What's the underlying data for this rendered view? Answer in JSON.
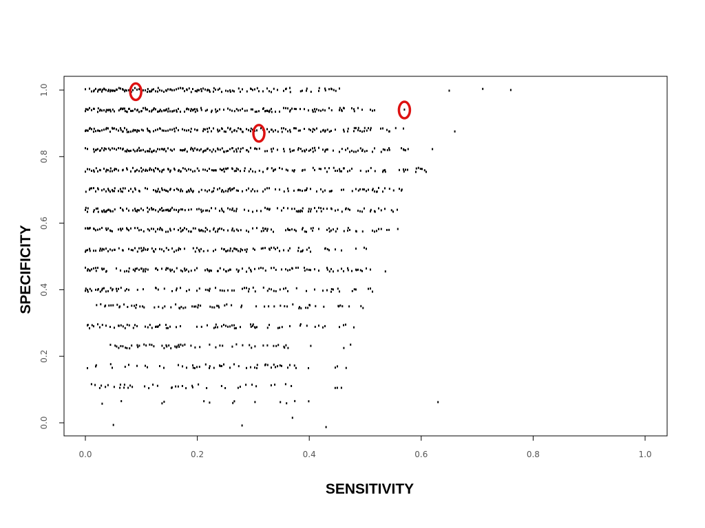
{
  "chart_data": {
    "type": "scatter",
    "title": "",
    "xlabel": "SENSITIVITY",
    "ylabel": "SPECIFICITY",
    "xlim": [
      0.0,
      1.0
    ],
    "ylim": [
      0.0,
      1.0
    ],
    "x_ticks": [
      "0.0",
      "0.2",
      "0.4",
      "0.6",
      "0.8",
      "1.0"
    ],
    "y_ticks": [
      "0.0",
      "0.2",
      "0.4",
      "0.6",
      "0.8",
      "1.0"
    ],
    "grid": false,
    "legend": "none",
    "point_color": "#000000",
    "highlight_color": "#dd1111",
    "bands": [
      {
        "y": 1.0,
        "x_min": 0.0,
        "x_max": 0.46,
        "density": 0.95,
        "outliers": [
          0.65,
          0.71,
          0.76
        ]
      },
      {
        "y": 0.94,
        "x_min": 0.0,
        "x_max": 0.52,
        "density": 0.92,
        "outliers": [
          0.57
        ]
      },
      {
        "y": 0.88,
        "x_min": 0.0,
        "x_max": 0.57,
        "density": 0.9,
        "outliers": [
          0.66
        ]
      },
      {
        "y": 0.82,
        "x_min": 0.0,
        "x_max": 0.58,
        "density": 0.88,
        "outliers": [
          0.62
        ]
      },
      {
        "y": 0.76,
        "x_min": 0.0,
        "x_max": 0.61,
        "density": 0.85,
        "outliers": []
      },
      {
        "y": 0.7,
        "x_min": 0.0,
        "x_max": 0.58,
        "density": 0.82,
        "outliers": []
      },
      {
        "y": 0.64,
        "x_min": 0.0,
        "x_max": 0.56,
        "density": 0.78,
        "outliers": []
      },
      {
        "y": 0.58,
        "x_min": 0.0,
        "x_max": 0.56,
        "density": 0.74,
        "outliers": []
      },
      {
        "y": 0.52,
        "x_min": 0.0,
        "x_max": 0.53,
        "density": 0.68,
        "outliers": []
      },
      {
        "y": 0.46,
        "x_min": 0.0,
        "x_max": 0.54,
        "density": 0.6,
        "outliers": []
      },
      {
        "y": 0.4,
        "x_min": 0.0,
        "x_max": 0.52,
        "density": 0.54,
        "outliers": []
      },
      {
        "y": 0.35,
        "x_min": 0.02,
        "x_max": 0.5,
        "density": 0.48,
        "outliers": []
      },
      {
        "y": 0.29,
        "x_min": 0.0,
        "x_max": 0.48,
        "density": 0.46,
        "outliers": []
      },
      {
        "y": 0.23,
        "x_min": 0.03,
        "x_max": 0.48,
        "density": 0.42,
        "outliers": []
      },
      {
        "y": 0.17,
        "x_min": 0.0,
        "x_max": 0.47,
        "density": 0.38,
        "outliers": []
      },
      {
        "y": 0.11,
        "x_min": 0.01,
        "x_max": 0.46,
        "density": 0.28,
        "outliers": []
      },
      {
        "y": 0.06,
        "x_min": 0.03,
        "x_max": 0.45,
        "density": 0.12,
        "outliers": [
          0.63
        ]
      },
      {
        "y": 0.01,
        "x_min": 0.37,
        "x_max": 0.37,
        "density": 0.0,
        "outliers": [
          0.37
        ]
      },
      {
        "y": -0.01,
        "x_min": 0.05,
        "x_max": 0.05,
        "density": 0.0,
        "outliers": [
          0.05,
          0.28,
          0.43
        ]
      }
    ],
    "highlighted_points": [
      {
        "x": 0.09,
        "y": 0.995
      },
      {
        "x": 0.57,
        "y": 0.94
      },
      {
        "x": 0.31,
        "y": 0.87
      }
    ]
  }
}
